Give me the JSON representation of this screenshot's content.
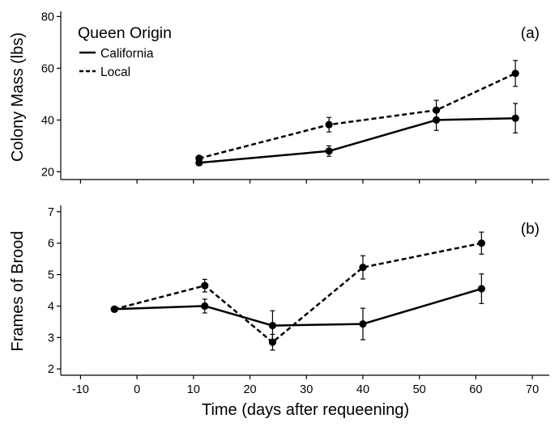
{
  "chart_data": [
    {
      "type": "line",
      "panel_label": "(a)",
      "ylabel": "Colony Mass (lbs)",
      "ylim": [
        17,
        82
      ],
      "yticks": [
        "20",
        "40",
        "60",
        "80"
      ],
      "ytick_values": [
        20,
        40,
        60,
        80
      ],
      "xlim": [
        -13.5,
        73
      ],
      "legend": {
        "title": "Queen Origin",
        "placement": "top-left",
        "items": [
          {
            "label": "California",
            "style": "solid"
          },
          {
            "label": "Local",
            "style": "dashed"
          }
        ]
      },
      "series": [
        {
          "name": "California",
          "style": "solid",
          "x": [
            11,
            34,
            53,
            67
          ],
          "y": [
            23.5,
            28,
            40,
            40.7
          ],
          "err": [
            1.0,
            2.0,
            4.0,
            5.7
          ]
        },
        {
          "name": "Local",
          "style": "dashed",
          "x": [
            11,
            34,
            53,
            67
          ],
          "y": [
            25.2,
            38.2,
            43.8,
            58
          ],
          "err": [
            0,
            2.8,
            3.8,
            5.0
          ]
        }
      ]
    },
    {
      "type": "line",
      "panel_label": "(b)",
      "ylabel": "Frames of Brood",
      "xlabel": "Time (days after requeening)",
      "ylim": [
        1.8,
        7.2
      ],
      "yticks": [
        "2",
        "3",
        "4",
        "5",
        "6",
        "7"
      ],
      "ytick_values": [
        2,
        3,
        4,
        5,
        6,
        7
      ],
      "xlim": [
        -13.5,
        73
      ],
      "xticks": [
        "-10",
        "0",
        "10",
        "20",
        "30",
        "40",
        "50",
        "60",
        "70"
      ],
      "xtick_values": [
        -10,
        0,
        10,
        20,
        30,
        40,
        50,
        60,
        70
      ],
      "series": [
        {
          "name": "California",
          "style": "solid",
          "x": [
            -4,
            12,
            24,
            40,
            61
          ],
          "y": [
            3.9,
            4.0,
            3.38,
            3.43,
            4.55
          ],
          "err": [
            0,
            0.22,
            0.47,
            0.5,
            0.47
          ]
        },
        {
          "name": "Local",
          "style": "dashed",
          "x": [
            -4,
            12,
            24,
            40,
            61
          ],
          "y": [
            3.9,
            4.65,
            2.85,
            5.23,
            6.0
          ],
          "err": [
            0,
            0.2,
            0.25,
            0.37,
            0.35
          ]
        }
      ]
    }
  ]
}
